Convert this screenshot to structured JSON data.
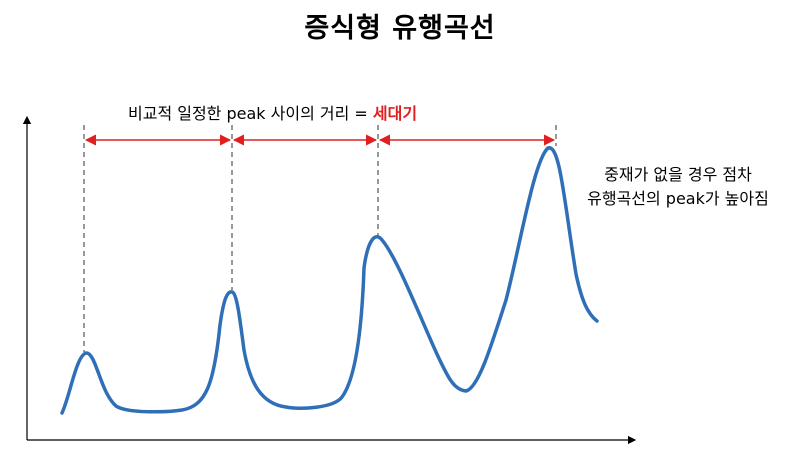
{
  "title": "증식형 유행곡선",
  "period": {
    "text": "비교적 일정한 peak 사이의 거리 = ",
    "term": "세대기"
  },
  "annotation": {
    "line1": "중재가 없을 경우 점차",
    "line2": "유행곡선의 peak가 높아짐"
  },
  "colors": {
    "curve": "#2e6fb7",
    "arrow": "#e02020",
    "guide": "#555555",
    "axis": "#000000"
  }
}
